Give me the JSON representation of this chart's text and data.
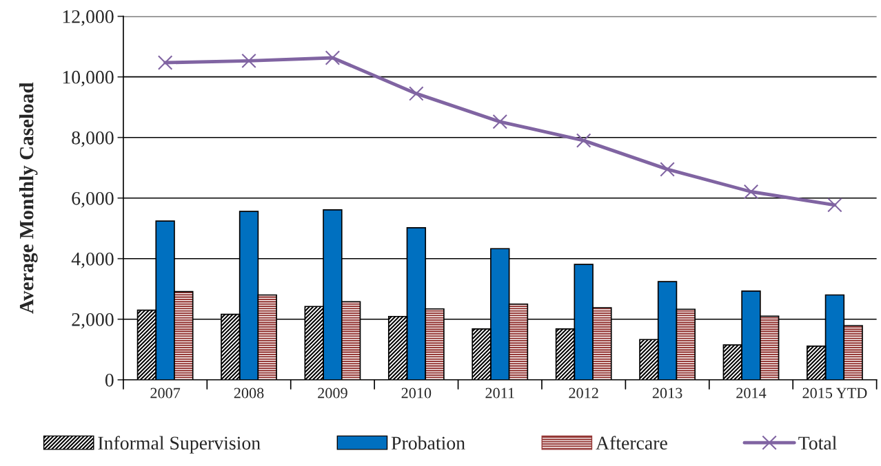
{
  "chart_data": {
    "type": "bar",
    "ylabel": "Average Monthly Caseload",
    "categories": [
      "2007",
      "2008",
      "2009",
      "2010",
      "2011",
      "2012",
      "2013",
      "2014",
      "2015 YTD"
    ],
    "series": [
      {
        "name": "Informal Supervision",
        "color": "#000000",
        "values": [
          2300,
          2160,
          2420,
          2090,
          1680,
          1680,
          1330,
          1150,
          1110
        ]
      },
      {
        "name": "Probation",
        "color": "#0070c0",
        "values": [
          5240,
          5560,
          5610,
          5020,
          4330,
          3810,
          3240,
          2930,
          2800
        ]
      },
      {
        "name": "Aftercare",
        "color": "#953735",
        "values": [
          2910,
          2800,
          2580,
          2340,
          2500,
          2380,
          2330,
          2100,
          1790
        ]
      },
      {
        "name": "Total",
        "type": "line",
        "color": "#8064a2",
        "marker": "cross",
        "values": [
          10470,
          10530,
          10630,
          9450,
          8520,
          7900,
          6950,
          6210,
          5770
        ]
      }
    ],
    "ylim": [
      0,
      12000
    ],
    "yticks": [
      {
        "value": 0,
        "label": "0"
      },
      {
        "value": 2000,
        "label": "2,000"
      },
      {
        "value": 4000,
        "label": "4,000"
      },
      {
        "value": 6000,
        "label": "6,000"
      },
      {
        "value": 8000,
        "label": "8,000"
      },
      {
        "value": 10000,
        "label": "10,000"
      },
      {
        "value": 12000,
        "label": "12,000"
      }
    ],
    "grid": "y",
    "legend": "bottom"
  }
}
